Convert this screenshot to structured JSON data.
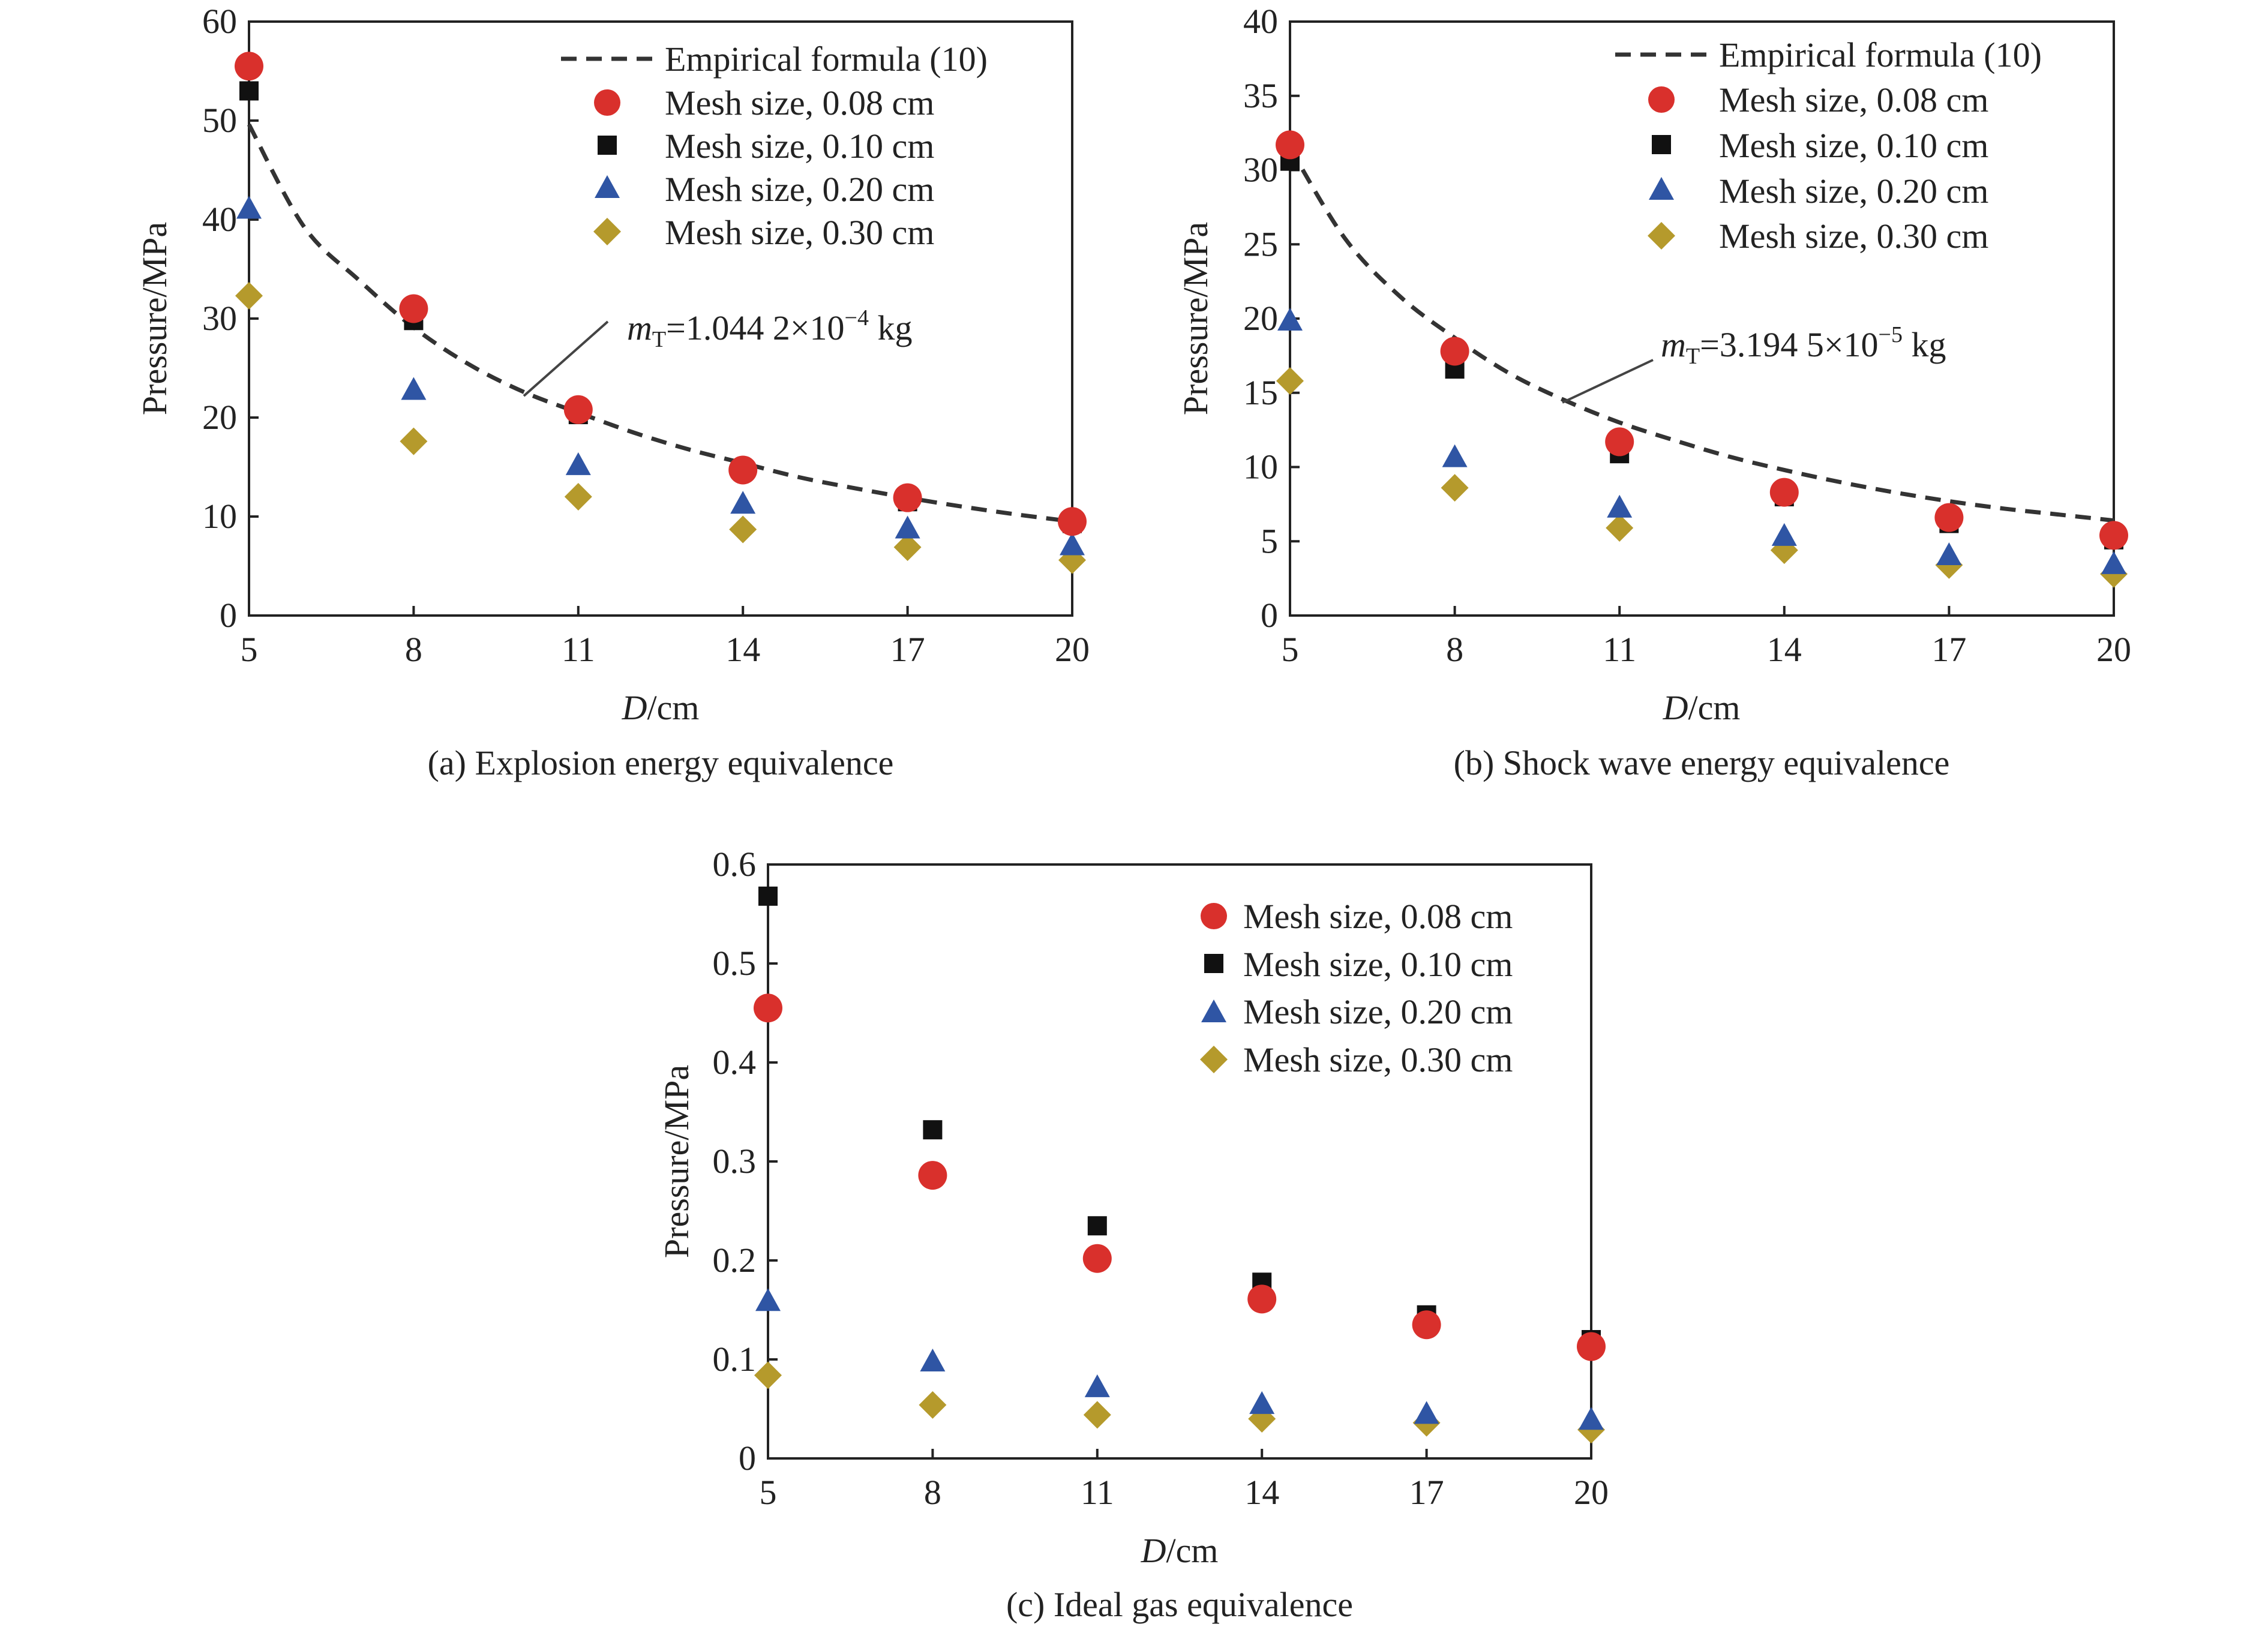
{
  "colors": {
    "mesh_008": "#d9302c",
    "mesh_010": "#111111",
    "mesh_020": "#2f55a4",
    "mesh_030": "#b59a2c",
    "empirical": "#333333",
    "axis": "#222222"
  },
  "chart_data": [
    {
      "type": "scatter",
      "caption": "(a) Explosion energy equivalence",
      "xlabel_italic": "D",
      "xlabel_unit": "/cm",
      "ylabel": "Pressure/MPa",
      "xlim": [
        5,
        20
      ],
      "ylim": [
        0,
        60
      ],
      "xticks": [
        "5",
        "8",
        "11",
        "14",
        "17",
        "20"
      ],
      "yticks": [
        "0",
        "10",
        "20",
        "30",
        "40",
        "50",
        "60"
      ],
      "legend_position": "top-right",
      "x": [
        5,
        8,
        11,
        14,
        17,
        20
      ],
      "series": [
        {
          "name": "Mesh size, 0.08 cm",
          "marker": "circle",
          "values": [
            55.5,
            31.0,
            20.8,
            14.7,
            11.9,
            9.5
          ]
        },
        {
          "name": "Mesh size, 0.10 cm",
          "marker": "square",
          "values": [
            53.0,
            29.8,
            20.3,
            14.6,
            11.5,
            9.3
          ]
        },
        {
          "name": "Mesh size, 0.20 cm",
          "marker": "triangle",
          "values": [
            41.0,
            22.7,
            15.1,
            11.2,
            8.7,
            7.0
          ]
        },
        {
          "name": "Mesh size, 0.30 cm",
          "marker": "diamond",
          "values": [
            32.3,
            17.6,
            12.0,
            8.7,
            6.9,
            5.6
          ]
        }
      ],
      "empirical": {
        "name": "Empirical formula (10)",
        "x": [
          5,
          6,
          7,
          8,
          9,
          10,
          11,
          12,
          13,
          14,
          15,
          16,
          17,
          18,
          19,
          20
        ],
        "values": [
          49.6,
          39.3,
          33.9,
          29.1,
          25.4,
          22.6,
          20.5,
          18.5,
          16.8,
          15.4,
          14.0,
          12.9,
          11.9,
          11.0,
          10.2,
          9.5
        ]
      },
      "annotation": {
        "prefix": "m",
        "sub": "T",
        "body": "=1.044 2×10",
        "sup": "−4",
        "suffix": " kg"
      }
    },
    {
      "type": "scatter",
      "caption": "(b) Shock wave energy equivalence",
      "xlabel_italic": "D",
      "xlabel_unit": "/cm",
      "ylabel": "Pressure/MPa",
      "xlim": [
        5,
        20
      ],
      "ylim": [
        0,
        40
      ],
      "xticks": [
        "5",
        "8",
        "11",
        "14",
        "17",
        "20"
      ],
      "yticks": [
        "0",
        "5",
        "10",
        "15",
        "20",
        "25",
        "30",
        "35",
        "40"
      ],
      "legend_position": "top-right",
      "x": [
        5,
        8,
        11,
        14,
        17,
        20
      ],
      "series": [
        {
          "name": "Mesh size, 0.08 cm",
          "marker": "circle",
          "values": [
            31.7,
            17.8,
            11.7,
            8.3,
            6.6,
            5.4
          ]
        },
        {
          "name": "Mesh size, 0.10 cm",
          "marker": "square",
          "values": [
            30.6,
            16.6,
            10.9,
            8.0,
            6.2,
            5.1
          ]
        },
        {
          "name": "Mesh size, 0.20 cm",
          "marker": "triangle",
          "values": [
            19.8,
            10.6,
            7.2,
            5.3,
            4.0,
            3.4
          ]
        },
        {
          "name": "Mesh size, 0.30 cm",
          "marker": "diamond",
          "values": [
            15.8,
            8.6,
            5.9,
            4.4,
            3.4,
            2.8
          ]
        }
      ],
      "empirical": {
        "name": "Empirical formula (10)",
        "x": [
          5,
          6,
          7,
          8,
          9,
          10,
          11,
          12,
          13,
          14,
          15,
          16,
          17,
          18,
          19,
          20
        ],
        "values": [
          31.5,
          25.4,
          21.5,
          18.7,
          16.3,
          14.5,
          13.0,
          11.8,
          10.7,
          9.8,
          9.0,
          8.3,
          7.7,
          7.2,
          6.8,
          6.4
        ]
      },
      "annotation": {
        "prefix": "m",
        "sub": "T",
        "body": "=3.194 5×10",
        "sup": "−5",
        "suffix": " kg"
      }
    },
    {
      "type": "scatter",
      "caption": "(c) Ideal gas equivalence",
      "xlabel_italic": "D",
      "xlabel_unit": "/cm",
      "ylabel": "Pressure/MPa",
      "xlim": [
        5,
        20
      ],
      "ylim": [
        0,
        0.6
      ],
      "xticks": [
        "5",
        "8",
        "11",
        "14",
        "17",
        "20"
      ],
      "yticks": [
        "0",
        "0.1",
        "0.2",
        "0.3",
        "0.4",
        "0.5",
        "0.6"
      ],
      "legend_position": "top-right",
      "x": [
        5,
        8,
        11,
        14,
        17,
        20
      ],
      "series": [
        {
          "name": "Mesh size, 0.08 cm",
          "marker": "circle",
          "values": [
            0.455,
            0.286,
            0.202,
            0.161,
            0.135,
            0.113
          ]
        },
        {
          "name": "Mesh size, 0.10 cm",
          "marker": "square",
          "values": [
            0.568,
            0.332,
            0.235,
            0.178,
            0.145,
            0.12
          ]
        },
        {
          "name": "Mesh size, 0.20 cm",
          "marker": "triangle",
          "values": [
            0.158,
            0.097,
            0.071,
            0.054,
            0.044,
            0.038
          ]
        },
        {
          "name": "Mesh size, 0.30 cm",
          "marker": "diamond",
          "values": [
            0.084,
            0.054,
            0.044,
            0.04,
            0.036,
            0.029
          ]
        }
      ]
    }
  ]
}
